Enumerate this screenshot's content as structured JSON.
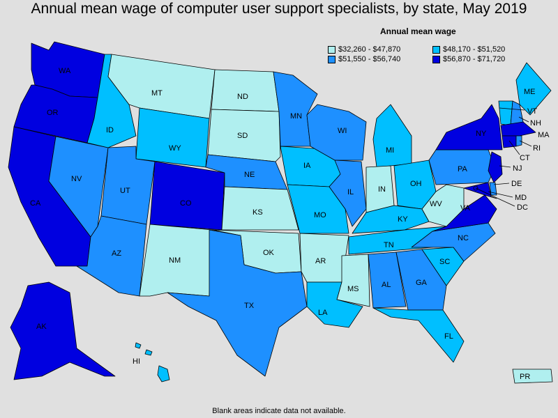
{
  "title": "Annual mean wage of computer user support specialists, by state, May 2019",
  "legend": {
    "title": "Annual mean wage",
    "items": [
      {
        "range": "$32,260 - $47,870",
        "color": "#b0efef"
      },
      {
        "range": "$48,170 - $51,520",
        "color": "#00bfff"
      },
      {
        "range": "$51,550 - $56,740",
        "color": "#1e90ff"
      },
      {
        "range": "$56,870 - $71,720",
        "color": "#0000e0"
      }
    ]
  },
  "footnote": "Blank areas indicate data not available.",
  "states": {
    "WA": {
      "label": "WA",
      "color": "#0000e0"
    },
    "OR": {
      "label": "OR",
      "color": "#0000e0"
    },
    "CA": {
      "label": "CA",
      "color": "#0000e0"
    },
    "NV": {
      "label": "NV",
      "color": "#1e90ff"
    },
    "ID": {
      "label": "ID",
      "color": "#00bfff"
    },
    "MT": {
      "label": "MT",
      "color": "#b0efef"
    },
    "WY": {
      "label": "WY",
      "color": "#00bfff"
    },
    "UT": {
      "label": "UT",
      "color": "#1e90ff"
    },
    "AZ": {
      "label": "AZ",
      "color": "#1e90ff"
    },
    "CO": {
      "label": "CO",
      "color": "#0000e0"
    },
    "NM": {
      "label": "NM",
      "color": "#b0efef"
    },
    "ND": {
      "label": "ND",
      "color": "#b0efef"
    },
    "SD": {
      "label": "SD",
      "color": "#b0efef"
    },
    "NE": {
      "label": "NE",
      "color": "#1e90ff"
    },
    "KS": {
      "label": "KS",
      "color": "#b0efef"
    },
    "OK": {
      "label": "OK",
      "color": "#b0efef"
    },
    "TX": {
      "label": "TX",
      "color": "#1e90ff"
    },
    "MN": {
      "label": "MN",
      "color": "#1e90ff"
    },
    "IA": {
      "label": "IA",
      "color": "#00bfff"
    },
    "MO": {
      "label": "MO",
      "color": "#00bfff"
    },
    "AR": {
      "label": "AR",
      "color": "#b0efef"
    },
    "LA": {
      "label": "LA",
      "color": "#00bfff"
    },
    "WI": {
      "label": "WI",
      "color": "#1e90ff"
    },
    "IL": {
      "label": "IL",
      "color": "#1e90ff"
    },
    "MI": {
      "label": "MI",
      "color": "#00bfff"
    },
    "IN": {
      "label": "IN",
      "color": "#b0efef"
    },
    "OH": {
      "label": "OH",
      "color": "#00bfff"
    },
    "KY": {
      "label": "KY",
      "color": "#00bfff"
    },
    "TN": {
      "label": "TN",
      "color": "#00bfff"
    },
    "MS": {
      "label": "MS",
      "color": "#b0efef"
    },
    "AL": {
      "label": "AL",
      "color": "#1e90ff"
    },
    "GA": {
      "label": "GA",
      "color": "#1e90ff"
    },
    "FL": {
      "label": "FL",
      "color": "#00bfff"
    },
    "SC": {
      "label": "SC",
      "color": "#00bfff"
    },
    "NC": {
      "label": "NC",
      "color": "#1e90ff"
    },
    "VA": {
      "label": "VA",
      "color": "#0000e0"
    },
    "WV": {
      "label": "WV",
      "color": "#b0efef"
    },
    "PA": {
      "label": "PA",
      "color": "#1e90ff"
    },
    "NY": {
      "label": "NY",
      "color": "#0000e0"
    },
    "ME": {
      "label": "ME",
      "color": "#00bfff"
    },
    "VT": {
      "label": "VT",
      "color": "#00bfff"
    },
    "NH": {
      "label": "NH",
      "color": "#1e90ff"
    },
    "MA": {
      "label": "MA",
      "color": "#0000e0"
    },
    "RI": {
      "label": "RI",
      "color": "#1e90ff"
    },
    "CT": {
      "label": "CT",
      "color": "#0000e0"
    },
    "NJ": {
      "label": "NJ",
      "color": "#0000e0"
    },
    "DE": {
      "label": "DE",
      "color": "#1e90ff"
    },
    "MD": {
      "label": "MD",
      "color": "#0000e0"
    },
    "DC": {
      "label": "DC",
      "color": "#0000e0"
    },
    "AK": {
      "label": "AK",
      "color": "#0000e0"
    },
    "HI": {
      "label": "HI",
      "color": "#00bfff"
    },
    "PR": {
      "label": "PR",
      "color": "#b0efef"
    }
  }
}
